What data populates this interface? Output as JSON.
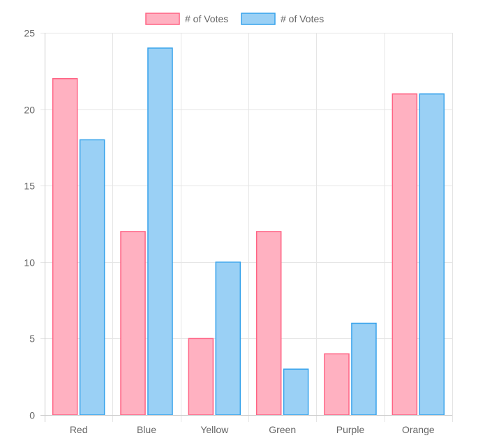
{
  "chart_data": {
    "type": "bar",
    "title": "",
    "xlabel": "",
    "ylabel": "",
    "categories": [
      "Red",
      "Blue",
      "Yellow",
      "Green",
      "Purple",
      "Orange"
    ],
    "series": [
      {
        "name": "# of Votes",
        "values": [
          22,
          12,
          5,
          12,
          4,
          21
        ],
        "fill": "#ffb1c1",
        "stroke": "#ff6384"
      },
      {
        "name": "# of Votes",
        "values": [
          18,
          24,
          10,
          3,
          6,
          21
        ],
        "fill": "#9ad0f5",
        "stroke": "#36a2eb"
      }
    ],
    "ylim": [
      0,
      25
    ],
    "yticks": [
      "0",
      "5",
      "10",
      "15",
      "20",
      "25"
    ],
    "grid": true,
    "legend_position": "top-center"
  }
}
